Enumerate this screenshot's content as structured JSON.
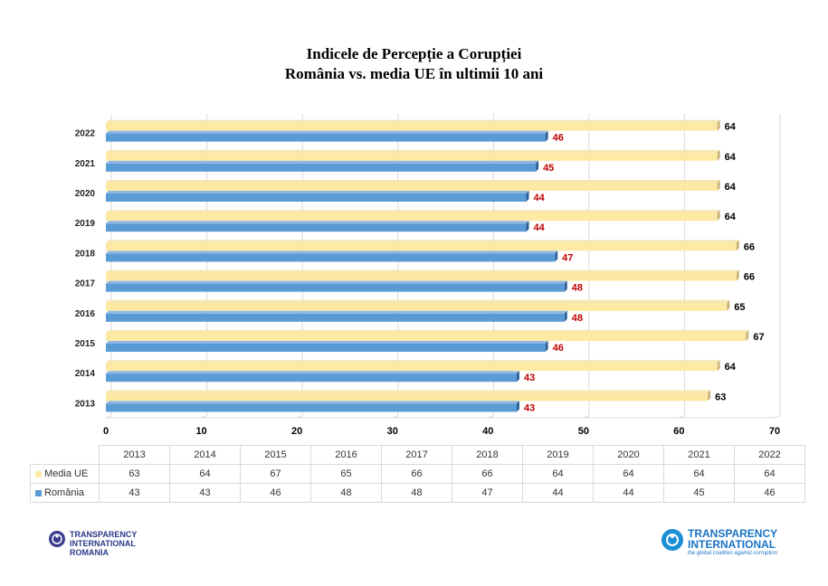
{
  "title_line1": "Indicele de Percepție a Corupției",
  "title_line2": "România vs. media UE în ultimii  10 ani",
  "chart_data": {
    "type": "bar",
    "orientation": "horizontal",
    "categories": [
      "2013",
      "2014",
      "2015",
      "2016",
      "2017",
      "2018",
      "2019",
      "2020",
      "2021",
      "2022"
    ],
    "series": [
      {
        "name": "Media UE",
        "values": [
          63,
          64,
          67,
          65,
          66,
          66,
          64,
          64,
          64,
          64
        ],
        "color": "#fde9a4",
        "label_color": "#000000"
      },
      {
        "name": "România",
        "values": [
          43,
          43,
          46,
          48,
          48,
          47,
          44,
          44,
          45,
          46
        ],
        "color": "#5b9bd5",
        "label_color": "#c00000"
      }
    ],
    "xlim": [
      0,
      70
    ],
    "xticks": [
      "0",
      "10",
      "20",
      "30",
      "40",
      "50",
      "60",
      "70"
    ],
    "grid": true,
    "legend": "data table below chart"
  },
  "logos": {
    "left": [
      "TRANSPARENCY",
      "INTERNATIONAL",
      "ROMANIA"
    ],
    "right": [
      "TRANSPARENCY",
      "INTERNATIONAL"
    ],
    "right_tagline": "the global coalition against corruption"
  }
}
